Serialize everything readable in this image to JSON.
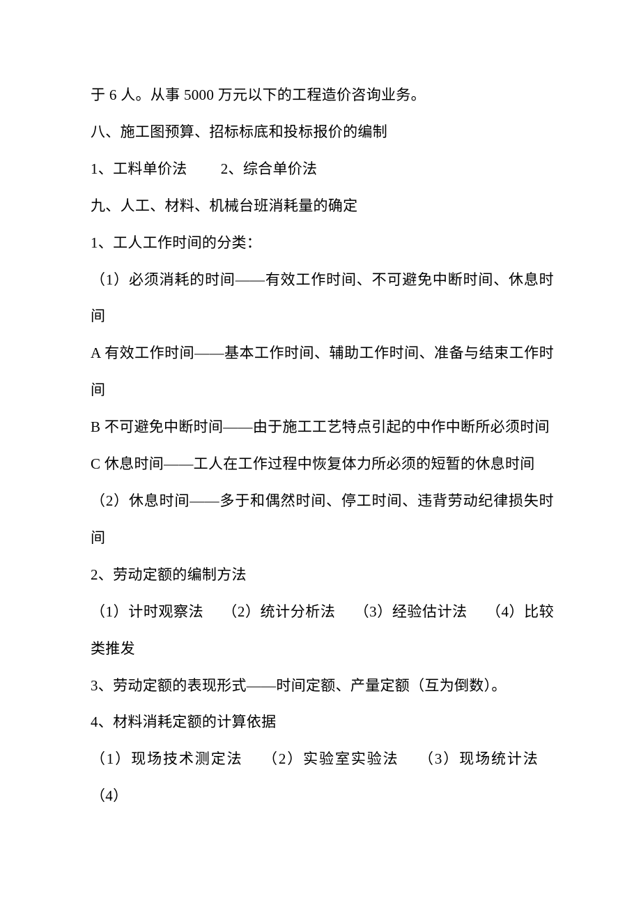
{
  "document": {
    "lines": [
      "于 6 人。从事 5000 万元以下的工程造价咨询业务。",
      "八、施工图预算、招标标底和投标报价的编制",
      "1、工料单价法   2、综合单价法",
      "九、人工、材料、机械台班消耗量的确定",
      "1、工人工作时间的分类：",
      "（1）必须消耗的时间——有效工作时间、不可避免中断时间、休息时间",
      "A 有效工作时间——基本工作时间、辅助工作时间、准备与结束工作时间",
      "B 不可避免中断时间——由于施工工艺特点引起的中作中断所必须时间",
      "C 休息时间——工人在工作过程中恢复体力所必须的短暂的休息时间",
      "（2）休息时间——多于和偶然时间、停工时间、违背劳动纪律损失时间",
      "2、劳动定额的编制方法",
      "（1）计时观察法  （2）统计分析法  （3）经验估计法  （4）比较类推发",
      "3、劳动定额的表现形式——时间定额、产量定额（互为倒数）。",
      "4、材料消耗定额的计算依据",
      "（1）现场技术测定法  （2）实验室实验法  （3）现场统计法  （4）"
    ],
    "font_size": 21,
    "line_height": 2.52,
    "text_color": "#000000",
    "background_color": "#ffffff"
  }
}
